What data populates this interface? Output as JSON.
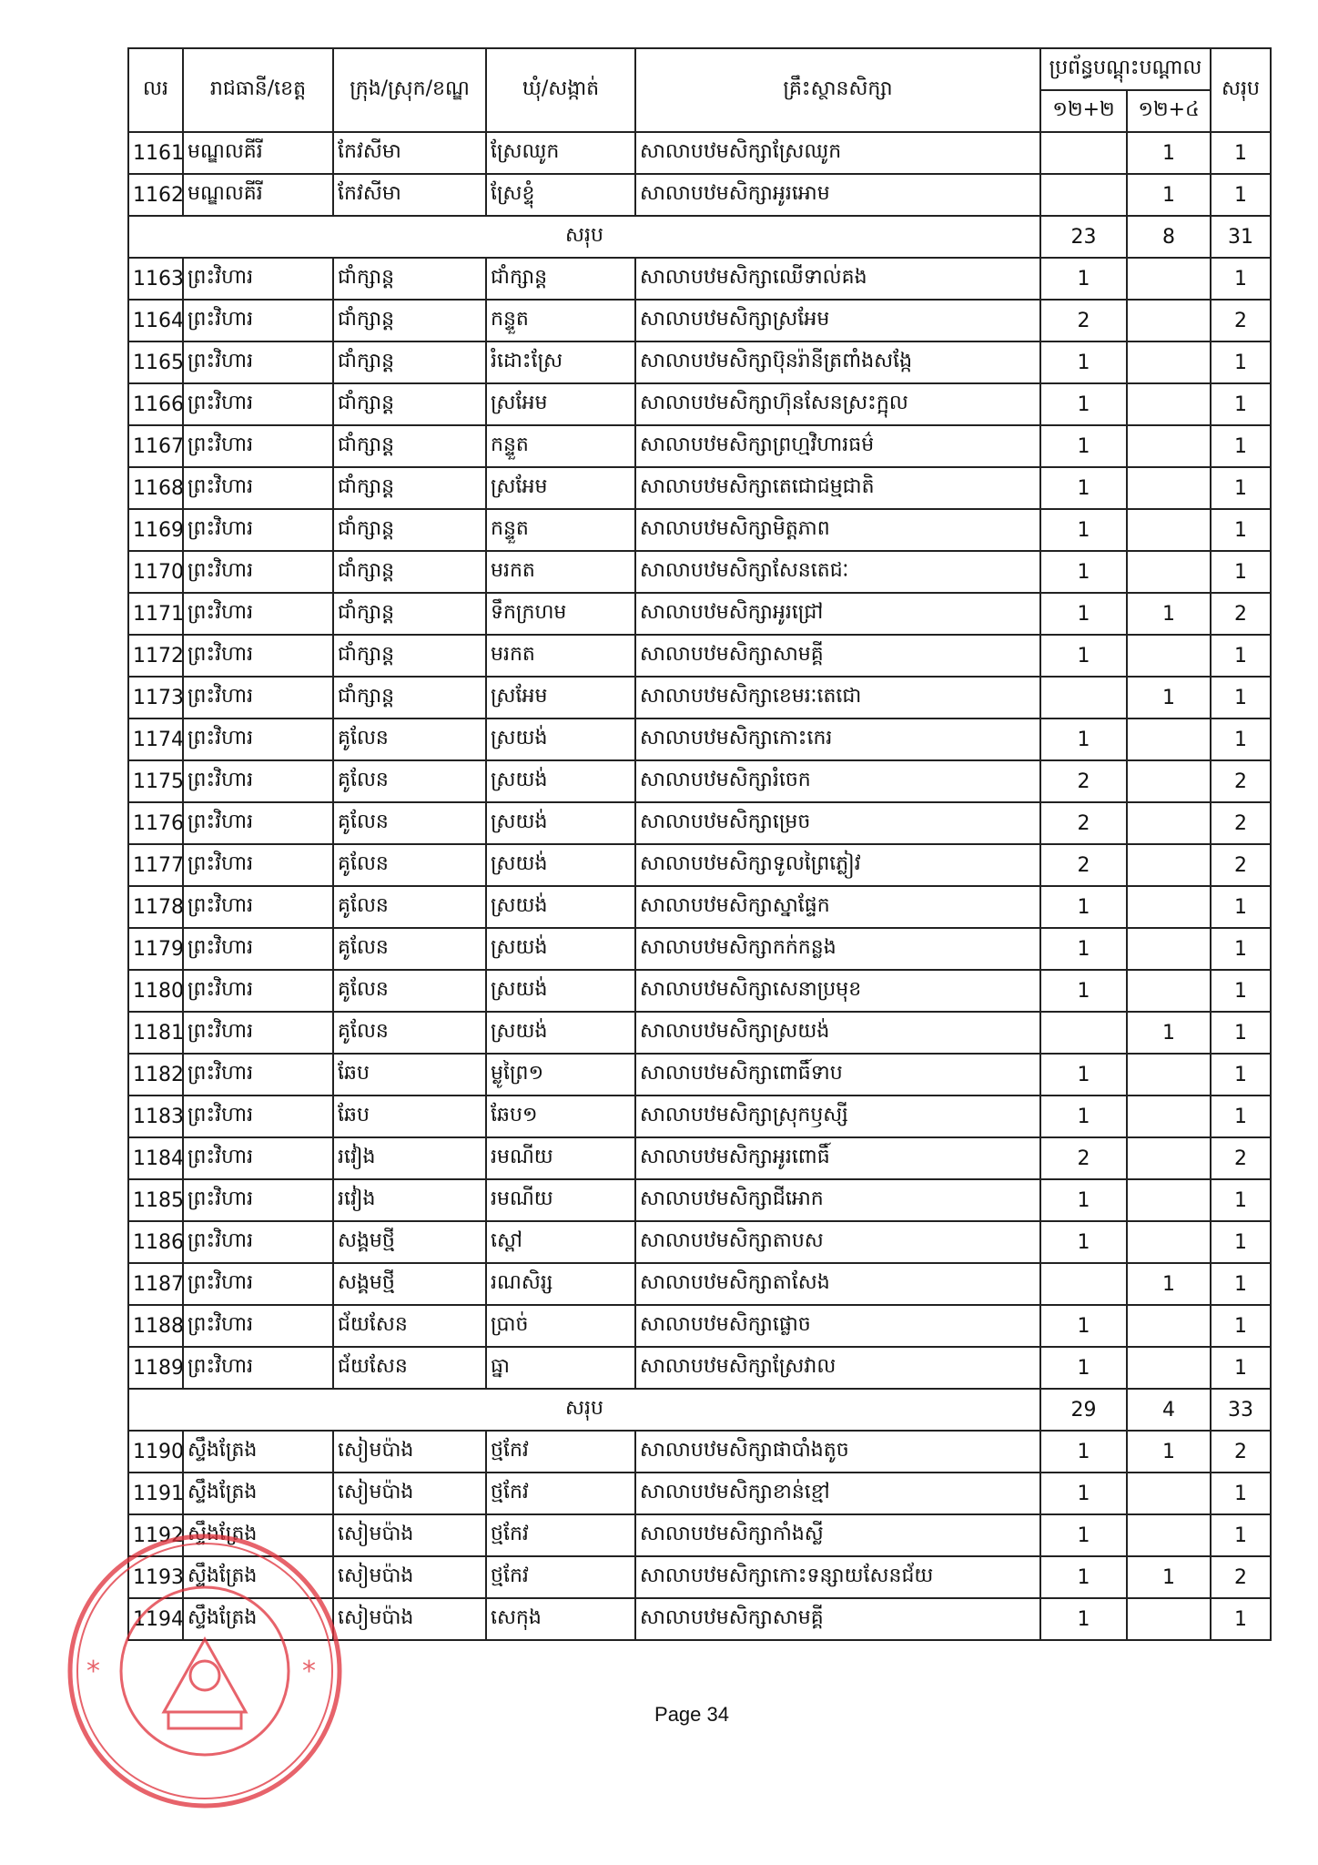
{
  "header": {
    "no": "លរ",
    "province": "រាជធានី/ខេត្ត",
    "district": "ក្រុង/ស្រុក/ខណ្ឌ",
    "commune": "ឃុំ/សង្កាត់",
    "institution": "គ្រឹះស្ថានសិក្សា",
    "program_group": "ប្រព័ន្ធបណ្តុះបណ្តាល",
    "program_a": "១២+២",
    "program_b": "១២+៤",
    "total": "សរុប"
  },
  "rows": [
    {
      "type": "row",
      "no": "1161",
      "province": "មណ្ឌលគីរី",
      "district": "កែវសីមា",
      "commune": "ស្រែឈូក",
      "school": "សាលាបឋមសិក្សាស្រែឈូក",
      "a": "",
      "b": "1",
      "total": "1"
    },
    {
      "type": "row",
      "no": "1162",
      "province": "មណ្ឌលគីរី",
      "district": "កែវសីមា",
      "commune": "ស្រែខ្ទុំ",
      "school": "សាលាបឋមសិក្សាអូរអោម",
      "a": "",
      "b": "1",
      "total": "1"
    },
    {
      "type": "sum",
      "label": "សរុប",
      "a": "23",
      "b": "8",
      "total": "31"
    },
    {
      "type": "row",
      "no": "1163",
      "province": "ព្រះវិហារ",
      "district": "ជាំក្សាន្ត",
      "commune": "ជាំក្សាន្ត",
      "school": "សាលាបឋមសិក្សាឈើទាល់គង",
      "a": "1",
      "b": "",
      "total": "1"
    },
    {
      "type": "row",
      "no": "1164",
      "province": "ព្រះវិហារ",
      "district": "ជាំក្សាន្ត",
      "commune": "កន្ទួត",
      "school": "សាលាបឋមសិក្សាស្រអែម",
      "a": "2",
      "b": "",
      "total": "2"
    },
    {
      "type": "row",
      "no": "1165",
      "province": "ព្រះវិហារ",
      "district": "ជាំក្សាន្ត",
      "commune": "រំដោះស្រែ",
      "school": "សាលាបឋមសិក្សាប៊ុនរ៉ានីត្រពាំងសង្កែ",
      "a": "1",
      "b": "",
      "total": "1"
    },
    {
      "type": "row",
      "no": "1166",
      "province": "ព្រះវិហារ",
      "district": "ជាំក្សាន្ត",
      "commune": "ស្រអែម",
      "school": "សាលាបឋមសិក្សាហ៊ុនសែនស្រះក្អុល",
      "a": "1",
      "b": "",
      "total": "1"
    },
    {
      "type": "row",
      "no": "1167",
      "province": "ព្រះវិហារ",
      "district": "ជាំក្សាន្ត",
      "commune": "កន្ទួត",
      "school": "សាលាបឋមសិក្សាព្រហ្មវិហារធម៌",
      "a": "1",
      "b": "",
      "total": "1"
    },
    {
      "type": "row",
      "no": "1168",
      "province": "ព្រះវិហារ",
      "district": "ជាំក្សាន្ត",
      "commune": "ស្រអែម",
      "school": "សាលាបឋមសិក្សាតេជោជម្មជាតិ",
      "a": "1",
      "b": "",
      "total": "1"
    },
    {
      "type": "row",
      "no": "1169",
      "province": "ព្រះវិហារ",
      "district": "ជាំក្សាន្ត",
      "commune": "កន្ទួត",
      "school": "សាលាបឋមសិក្សាមិត្តភាព",
      "a": "1",
      "b": "",
      "total": "1"
    },
    {
      "type": "row",
      "no": "1170",
      "province": "ព្រះវិហារ",
      "district": "ជាំក្សាន្ត",
      "commune": "មរកត",
      "school": "សាលាបឋមសិក្សាសែនតេជៈ",
      "a": "1",
      "b": "",
      "total": "1"
    },
    {
      "type": "row",
      "no": "1171",
      "province": "ព្រះវិហារ",
      "district": "ជាំក្សាន្ត",
      "commune": "ទឹកក្រហម",
      "school": "សាលាបឋមសិក្សាអូរជ្រៅ",
      "a": "1",
      "b": "1",
      "total": "2"
    },
    {
      "type": "row",
      "no": "1172",
      "province": "ព្រះវិហារ",
      "district": "ជាំក្សាន្ត",
      "commune": "មរកត",
      "school": "សាលាបឋមសិក្សាសាមគ្គី",
      "a": "1",
      "b": "",
      "total": "1"
    },
    {
      "type": "row",
      "no": "1173",
      "province": "ព្រះវិហារ",
      "district": "ជាំក្សាន្ត",
      "commune": "ស្រអែម",
      "school": "សាលាបឋមសិក្សាខេមរៈតេជោ",
      "a": "",
      "b": "1",
      "total": "1"
    },
    {
      "type": "row",
      "no": "1174",
      "province": "ព្រះវិហារ",
      "district": "គូលែន",
      "commune": "ស្រយង់",
      "school": "សាលាបឋមសិក្សាកោះកេរ",
      "a": "1",
      "b": "",
      "total": "1"
    },
    {
      "type": "row",
      "no": "1175",
      "province": "ព្រះវិហារ",
      "district": "គូលែន",
      "commune": "ស្រយង់",
      "school": "សាលាបឋមសិក្សារំចេក",
      "a": "2",
      "b": "",
      "total": "2"
    },
    {
      "type": "row",
      "no": "1176",
      "province": "ព្រះវិហារ",
      "district": "គូលែន",
      "commune": "ស្រយង់",
      "school": "សាលាបឋមសិក្សាម្រេច",
      "a": "2",
      "b": "",
      "total": "2"
    },
    {
      "type": "row",
      "no": "1177",
      "province": "ព្រះវិហារ",
      "district": "គូលែន",
      "commune": "ស្រយង់",
      "school": "សាលាបឋមសិក្សាទូលព្រៃភ្លៀវ",
      "a": "2",
      "b": "",
      "total": "2"
    },
    {
      "type": "row",
      "no": "1178",
      "province": "ព្រះវិហារ",
      "district": "គូលែន",
      "commune": "ស្រយង់",
      "school": "សាលាបឋមសិក្សាស្នាផ្ទែក",
      "a": "1",
      "b": "",
      "total": "1"
    },
    {
      "type": "row",
      "no": "1179",
      "province": "ព្រះវិហារ",
      "district": "គូលែន",
      "commune": "ស្រយង់",
      "school": "សាលាបឋមសិក្សាកក់កន្លង",
      "a": "1",
      "b": "",
      "total": "1"
    },
    {
      "type": "row",
      "no": "1180",
      "province": "ព្រះវិហារ",
      "district": "គូលែន",
      "commune": "ស្រយង់",
      "school": "សាលាបឋមសិក្សាសេនាប្រមុខ",
      "a": "1",
      "b": "",
      "total": "1"
    },
    {
      "type": "row",
      "no": "1181",
      "province": "ព្រះវិហារ",
      "district": "គូលែន",
      "commune": "ស្រយង់",
      "school": "សាលាបឋមសិក្សាស្រយង់",
      "a": "",
      "b": "1",
      "total": "1"
    },
    {
      "type": "row",
      "no": "1182",
      "province": "ព្រះវិហារ",
      "district": "ឆែប",
      "commune": "ម្លូព្រៃ១",
      "school": "សាលាបឋមសិក្សាពោធិ៍ទាប",
      "a": "1",
      "b": "",
      "total": "1"
    },
    {
      "type": "row",
      "no": "1183",
      "province": "ព្រះវិហារ",
      "district": "ឆែប",
      "commune": "ឆែប១",
      "school": "សាលាបឋមសិក្សាស្រុកឫស្សី",
      "a": "1",
      "b": "",
      "total": "1"
    },
    {
      "type": "row",
      "no": "1184",
      "province": "ព្រះវិហារ",
      "district": "រវៀង",
      "commune": "រមណីយ",
      "school": "សាលាបឋមសិក្សាអូរពោធិ៍",
      "a": "2",
      "b": "",
      "total": "2"
    },
    {
      "type": "row",
      "no": "1185",
      "province": "ព្រះវិហារ",
      "district": "រវៀង",
      "commune": "រមណីយ",
      "school": "សាលាបឋមសិក្សាជីអោក",
      "a": "1",
      "b": "",
      "total": "1"
    },
    {
      "type": "row",
      "no": "1186",
      "province": "ព្រះវិហារ",
      "district": "សង្គមថ្មី",
      "commune": "ស្ពៅ",
      "school": "សាលាបឋមសិក្សាតាបស",
      "a": "1",
      "b": "",
      "total": "1"
    },
    {
      "type": "row",
      "no": "1187",
      "province": "ព្រះវិហារ",
      "district": "សង្គមថ្មី",
      "commune": "រណសិរ្ស",
      "school": "សាលាបឋមសិក្សាតាសែង",
      "a": "",
      "b": "1",
      "total": "1"
    },
    {
      "type": "row",
      "no": "1188",
      "province": "ព្រះវិហារ",
      "district": "ជ័យសែន",
      "commune": "ប្រាច់",
      "school": "សាលាបឋមសិក្សាផ្លោច",
      "a": "1",
      "b": "",
      "total": "1"
    },
    {
      "type": "row",
      "no": "1189",
      "province": "ព្រះវិហារ",
      "district": "ជ័យសែន",
      "commune": "ធ្នា",
      "school": "សាលាបឋមសិក្សាស្រែវាល",
      "a": "1",
      "b": "",
      "total": "1"
    },
    {
      "type": "sum",
      "label": "សរុប",
      "a": "29",
      "b": "4",
      "total": "33"
    },
    {
      "type": "row",
      "no": "1190",
      "province": "ស្ទឹងត្រែង",
      "district": "សៀមប៉ាង",
      "commune": "ថ្មកែវ",
      "school": "សាលាបឋមសិក្សាផាបាំងតូច",
      "a": "1",
      "b": "1",
      "total": "2"
    },
    {
      "type": "row",
      "no": "1191",
      "province": "ស្ទឹងត្រែង",
      "district": "សៀមប៉ាង",
      "commune": "ថ្មកែវ",
      "school": "សាលាបឋមសិក្សាខាន់ខ្មៅ",
      "a": "1",
      "b": "",
      "total": "1"
    },
    {
      "type": "row",
      "no": "1192",
      "province": "ស្ទឹងត្រែង",
      "district": "សៀមប៉ាង",
      "commune": "ថ្មកែវ",
      "school": "សាលាបឋមសិក្សាកាំងស្លី",
      "a": "1",
      "b": "",
      "total": "1"
    },
    {
      "type": "row",
      "no": "1193",
      "province": "ស្ទឹងត្រែង",
      "district": "សៀមប៉ាង",
      "commune": "ថ្មកែវ",
      "school": "សាលាបឋមសិក្សាកោះទន្សាយសែនជ័យ",
      "a": "1",
      "b": "1",
      "total": "2"
    },
    {
      "type": "row",
      "no": "1194",
      "province": "ស្ទឹងត្រែង",
      "district": "សៀមប៉ាង",
      "commune": "សេកុង",
      "school": "សាលាបឋមសិក្សាសាមគ្គី",
      "a": "1",
      "b": "",
      "total": "1"
    }
  ],
  "footer": {
    "page": "Page 34"
  },
  "stamp": {
    "color": "#e0303a",
    "icon": "official-seal"
  }
}
